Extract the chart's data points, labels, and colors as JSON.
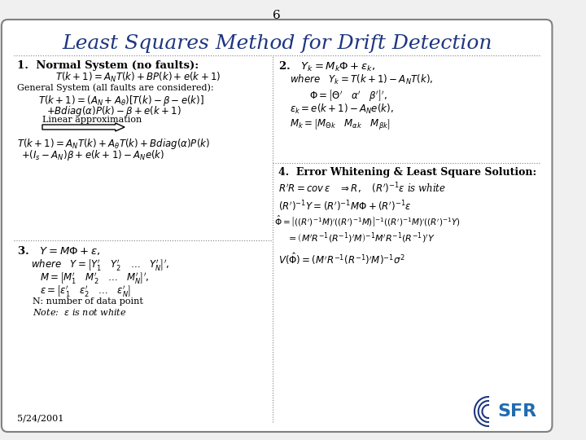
{
  "slide_number": "6",
  "title": "Least Squares Method for Drift Detection",
  "title_color": "#1F3680",
  "background_color": "#F0F0F0",
  "box_color": "#FFFFFF",
  "border_color": "#808080",
  "date": "5/24/2001",
  "left_col": {
    "section1_header": "1.  Normal System (no faults):",
    "section1_eq1": "$T(k+1) = A_N T(k) + BP(k) + e(k+1)$",
    "section1_sub": "General System (all faults are considered):",
    "section1_eq2a": "$T(k+1) = (A_N + A_\\theta)[T(k) - \\beta - e(k)]$",
    "section1_eq2b": "$+ Bdiag(\\alpha)P(k) - \\beta + e(k+1)$",
    "section1_arrow_label": "Linear approximation",
    "section1_eq3a": "$T(k+1) = A_N T(k) + A_\\theta T(k) + Bdiag(\\alpha)P(k)$",
    "section1_eq3b": "$+(I_s - A_N)\\beta + e(k+1) - A_N e(k)$",
    "section3_header": "3.   $Y = M\\Phi + \\varepsilon,$",
    "section3_where": "$where \\quad Y = \\begin{bmatrix} Y_1^{\\prime} & Y_2^{\\prime} & \\square & Y_N^{\\prime} \\end{bmatrix}^{\\prime},$",
    "section3_M": "$M = \\begin{bmatrix} M_1^{\\prime} & M_2^{\\prime} & \\square & M_N^{\\prime} \\end{bmatrix}^{\\prime},$",
    "section3_eps": "$\\varepsilon = \\begin{bmatrix} \\varepsilon_1^{\\prime} & \\varepsilon_2^{\\prime} & \\square & \\varepsilon_N^{\\prime} \\end{bmatrix}$",
    "section3_N": "N: number of data point",
    "section3_note": "Note:  $\\varepsilon$ is not white"
  },
  "right_col": {
    "section2_header": "2.",
    "section2_eq1": "$Y_k = M_k \\Phi + \\varepsilon_k,$",
    "section2_where": "$where \\quad Y_k = T(k+1) - A_N T(k),$",
    "section2_Phi": "$\\Phi = \\begin{bmatrix} \\Theta^{\\prime} & \\alpha^{\\prime} & \\beta^{\\prime} \\end{bmatrix}^{\\prime},$",
    "section2_eps": "$\\varepsilon_k = e(k+1) - A_N e(k),$",
    "section2_M": "$M_k = \\begin{bmatrix} M_{\\Theta k} & M_{\\alpha k} & M_{\\beta k} \\end{bmatrix}$",
    "section4_header": "4.  Error Whitening & Least Square Solution:",
    "section4_eq1": "$R^{\\prime}R = cov\\,\\varepsilon \\quad \\Rightarrow R, \\quad (R^{\\prime})^{-1}\\varepsilon$ is white",
    "section4_eq2": "$(R^{\\prime})^{-1}Y = (R^{\\prime})^{-1} M\\Phi + (R^{\\prime})^{-1}\\varepsilon$",
    "section4_eq3": "$\\hat{\\Phi} = \\left[((R^{\\prime})^{-1}M)^{\\prime}((R^{\\prime})^{-1}M)\\right]^{-1}((R^{\\prime})^{-1}M)^{\\prime}((R^{\\prime})^{-1}Y)$",
    "section4_eq4": "$= \\left(M^{\\prime}R^{-1}(R^{-1})^{\\prime}M\\right)^{-1} M^{\\prime}R^{-1}(R^{-1})^{\\prime}Y$",
    "section4_eq5": "$V(\\hat{\\Phi}) = \\left(M^{\\prime}R^{-1}(R^{-1})^{\\prime}M\\right)^{-1}\\sigma^2$"
  }
}
